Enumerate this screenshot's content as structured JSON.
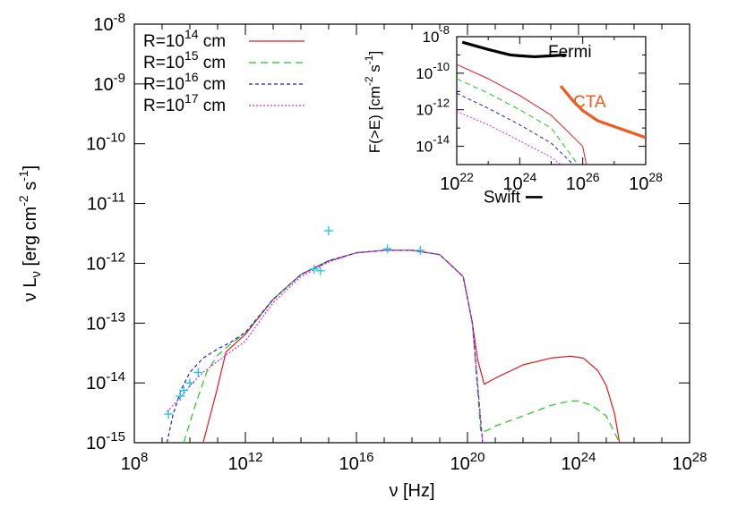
{
  "chart_data": [
    {
      "type": "line",
      "xlabel": "ν [Hz]",
      "ylabel": "ν L_ν [erg cm^-2 s^-1]",
      "xscale": "log",
      "yscale": "log",
      "xlim": [
        100000000.0,
        1e+28
      ],
      "ylim": [
        1e-15,
        1e-08
      ],
      "x_ticks": [
        {
          "value": 100000000.0,
          "base": "10",
          "exp": "8"
        },
        {
          "value": 1000000000000.0,
          "base": "10",
          "exp": "12"
        },
        {
          "value": 1e+16,
          "base": "10",
          "exp": "16"
        },
        {
          "value": 1e+20,
          "base": "10",
          "exp": "20"
        },
        {
          "value": 1e+24,
          "base": "10",
          "exp": "24"
        },
        {
          "value": 1e+28,
          "base": "10",
          "exp": "28"
        }
      ],
      "y_ticks": [
        {
          "value": 1e-15,
          "base": "10",
          "exp": "-15"
        },
        {
          "value": 1e-14,
          "base": "10",
          "exp": "-14"
        },
        {
          "value": 1e-13,
          "base": "10",
          "exp": "-13"
        },
        {
          "value": 1e-12,
          "base": "10",
          "exp": "-12"
        },
        {
          "value": 1e-11,
          "base": "10",
          "exp": "-11"
        },
        {
          "value": 1e-10,
          "base": "10",
          "exp": "-10"
        },
        {
          "value": 1e-09,
          "base": "10",
          "exp": "-9"
        },
        {
          "value": 1e-08,
          "base": "10",
          "exp": "-8"
        }
      ],
      "legend_position": "top-left",
      "series": [
        {
          "name": "R=10^14 cm",
          "name_base": "R=10",
          "name_exp": "14",
          "name_unit": " cm",
          "color": "#e41a1c",
          "dash": "",
          "points": [
            [
              30000000000.0,
              1e-15
            ],
            [
              90000000000.0,
              7e-15
            ],
            [
              200000000000.0,
              3.3e-14
            ],
            [
              1000000000000.0,
              6.5e-14
            ],
            [
              10000000000000.0,
              2.5e-13
            ],
            [
              100000000000000.0,
              6.5e-13
            ],
            [
              1000000000000000.0,
              1.1e-12
            ],
            [
              1e+16,
              1.5e-12
            ],
            [
              1e+17,
              1.65e-12
            ],
            [
              1e+18,
              1.65e-12
            ],
            [
              1e+19,
              1.4e-12
            ],
            [
              7e+19,
              6e-13
            ],
            [
              1.5e+20,
              1e-13
            ],
            [
              2.3e+20,
              2.5e-14
            ],
            [
              4e+20,
              9.5e-15
            ],
            [
              1e+21,
              1.2e-14
            ],
            [
              1e+22,
              2e-14
            ],
            [
              1e+23,
              2.6e-14
            ],
            [
              5e+23,
              2.8e-14
            ],
            [
              1.5e+24,
              2.6e-14
            ],
            [
              5e+24,
              1.6e-14
            ],
            [
              1e+25,
              9e-15
            ],
            [
              2e+25,
              3e-15
            ],
            [
              3e+25,
              1e-15
            ]
          ]
        },
        {
          "name": "R=10^15 cm",
          "name_base": "R=10",
          "name_exp": "15",
          "name_unit": " cm",
          "color": "#1ec81e",
          "dash": "8,5",
          "points": [
            [
              6000000000.0,
              1e-15
            ],
            [
              15000000000.0,
              4e-15
            ],
            [
              40000000000.0,
              1.5e-14
            ],
            [
              100000000000.0,
              2.9e-14
            ],
            [
              300000000000.0,
              4.5e-14
            ],
            [
              1000000000000.0,
              6.8e-14
            ],
            [
              10000000000000.0,
              2.5e-13
            ],
            [
              100000000000000.0,
              6.5e-13
            ],
            [
              1000000000000000.0,
              1.1e-12
            ],
            [
              1e+16,
              1.5e-12
            ],
            [
              1e+17,
              1.65e-12
            ],
            [
              1e+18,
              1.65e-12
            ],
            [
              1e+19,
              1.4e-12
            ],
            [
              7e+19,
              6e-13
            ],
            [
              1.5e+20,
              1e-13
            ],
            [
              3e+20,
              1.5e-15
            ],
            [
              5e+20,
              1.6e-15
            ],
            [
              1e+21,
              1.9e-15
            ],
            [
              1e+22,
              2.8e-15
            ],
            [
              1e+23,
              4.2e-15
            ],
            [
              5e+23,
              5e-15
            ],
            [
              1e+24,
              5e-15
            ],
            [
              3e+24,
              4.2e-15
            ],
            [
              1e+25,
              2.8e-15
            ],
            [
              3e+25,
              1e-15
            ]
          ]
        },
        {
          "name": "R=10^16 cm",
          "name_base": "R=10",
          "name_exp": "16",
          "name_unit": " cm",
          "color": "#1f1fd0",
          "dash": "4,3",
          "points": [
            [
              1500000000.0,
              1e-15
            ],
            [
              2500000000.0,
              3e-15
            ],
            [
              5000000000.0,
              8e-15
            ],
            [
              10000000000.0,
              1.5e-14
            ],
            [
              30000000000.0,
              2.6e-14
            ],
            [
              100000000000.0,
              3.7e-14
            ],
            [
              300000000000.0,
              4.8e-14
            ],
            [
              1000000000000.0,
              7e-14
            ],
            [
              10000000000000.0,
              2.5e-13
            ],
            [
              100000000000000.0,
              6.5e-13
            ],
            [
              1000000000000000.0,
              1.1e-12
            ],
            [
              1e+16,
              1.5e-12
            ],
            [
              1e+17,
              1.65e-12
            ],
            [
              1e+18,
              1.65e-12
            ],
            [
              1e+19,
              1.4e-12
            ],
            [
              7e+19,
              6e-13
            ],
            [
              1.5e+20,
              1e-13
            ],
            [
              3.5e+20,
              1e-15
            ]
          ]
        },
        {
          "name": "R=10^17 cm",
          "name_base": "R=10",
          "name_exp": "17",
          "name_unit": " cm",
          "color": "#e01ee0",
          "dash": "2,2",
          "points": [
            [
              1500000000.0,
              3.3e-15
            ],
            [
              5000000000.0,
              6e-15
            ],
            [
              10000000000.0,
              9e-15
            ],
            [
              30000000000.0,
              1.5e-14
            ],
            [
              100000000000.0,
              2.3e-14
            ],
            [
              1000000000000.0,
              5e-14
            ],
            [
              10000000000000.0,
              2.2e-13
            ],
            [
              100000000000000.0,
              6e-13
            ],
            [
              1000000000000000.0,
              1.05e-12
            ],
            [
              1e+16,
              1.5e-12
            ],
            [
              1e+17,
              1.65e-12
            ],
            [
              1e+18,
              1.65e-12
            ],
            [
              1e+19,
              1.4e-12
            ],
            [
              7e+19,
              6e-13
            ],
            [
              1.5e+20,
              1e-13
            ],
            [
              3.5e+20,
              1e-15
            ]
          ]
        }
      ],
      "observations": {
        "color": "#22ccdd",
        "points": [
          [
            1700000000.0,
            3e-15
          ],
          [
            4500000000.0,
            6e-15
          ],
          [
            6000000000.0,
            7.5e-15
          ],
          [
            10000000000.0,
            1e-14
          ],
          [
            20000000000.0,
            1.5e-14
          ],
          [
            300000000000000.0,
            8e-13
          ],
          [
            500000000000000.0,
            7.5e-13
          ],
          [
            1000000000000000.0,
            3.5e-12
          ],
          [
            1.3e+17,
            1.75e-12
          ],
          [
            2e+18,
            1.65e-12
          ]
        ]
      },
      "annotations": [
        {
          "text": "Swift",
          "at": [
            8e+21,
            1.28e-11
          ],
          "line_to": 5e+22
        }
      ]
    },
    {
      "type": "line",
      "ylabel": "F(>E) [cm^-2 s^-1]",
      "xscale": "log",
      "yscale": "log",
      "xlim": [
        1e+22,
        1e+28
      ],
      "ylim": [
        1e-15,
        1e-08
      ],
      "x_ticks": [
        {
          "value": 1e+22,
          "base": "10",
          "exp": "22"
        },
        {
          "value": 1e+24,
          "base": "10",
          "exp": "24"
        },
        {
          "value": 1e+26,
          "base": "10",
          "exp": "26"
        },
        {
          "value": 1e+28,
          "base": "10",
          "exp": "28"
        }
      ],
      "y_ticks": [
        {
          "value": 1e-14,
          "base": "10",
          "exp": "-14"
        },
        {
          "value": 1e-12,
          "base": "10",
          "exp": "-12"
        },
        {
          "value": 1e-10,
          "base": "10",
          "exp": "-10"
        },
        {
          "value": 1e-08,
          "base": "10",
          "exp": "-8"
        }
      ],
      "series": [
        {
          "name": "Fermi",
          "color": "#000000",
          "dash": "",
          "width": 3.2,
          "points": [
            [
              1.5e+22,
              5e-09
            ],
            [
              1e+23,
              2e-09
            ],
            [
              5e+23,
              1e-09
            ],
            [
              1e+24,
              9e-10
            ],
            [
              3e+24,
              8e-10
            ],
            [
              1e+25,
              9e-10
            ],
            [
              3e+25,
              1e-09
            ]
          ]
        },
        {
          "name": "CTA",
          "color": "#f05a1e",
          "dash": "",
          "width": 3.2,
          "points": [
            [
              2e+25,
              2e-11
            ],
            [
              5e+25,
              3e-12
            ],
            [
              1e+26,
              9e-13
            ],
            [
              3e+26,
              2.5e-13
            ],
            [
              1e+27,
              1.2e-13
            ],
            [
              1e+28,
              3e-14
            ]
          ]
        },
        {
          "name": "",
          "color": "#e41a1c",
          "dash": "",
          "width": 1,
          "points": [
            [
              1e+22,
              3e-10
            ],
            [
              1e+23,
              5e-11
            ],
            [
              1e+24,
              6e-12
            ],
            [
              1e+25,
              5e-13
            ],
            [
              1e+26,
              1e-14
            ],
            [
              1.3e+26,
              1e-15
            ]
          ]
        },
        {
          "name": "",
          "color": "#1ec81e",
          "dash": "6,4",
          "width": 1,
          "points": [
            [
              1e+22,
              5e-11
            ],
            [
              1e+23,
              8e-12
            ],
            [
              1e+24,
              1e-12
            ],
            [
              1e+25,
              1e-13
            ],
            [
              7e+25,
              1e-15
            ]
          ]
        },
        {
          "name": "",
          "color": "#1f1fd0",
          "dash": "4,3",
          "width": 1,
          "points": [
            [
              1e+22,
              8e-12
            ],
            [
              1e+23,
              1.2e-12
            ],
            [
              1e+24,
              1.5e-13
            ],
            [
              1e+25,
              1.5e-14
            ],
            [
              5e+25,
              1e-15
            ]
          ]
        },
        {
          "name": "",
          "color": "#e01ee0",
          "dash": "2,2",
          "width": 1,
          "points": [
            [
              1e+22,
              8e-13
            ],
            [
              1e+23,
              1.5e-13
            ],
            [
              1e+24,
              2e-14
            ],
            [
              1e+25,
              2.5e-15
            ],
            [
              2e+25,
              1e-15
            ]
          ]
        }
      ],
      "labels": [
        {
          "text": "Fermi",
          "color": "#000000"
        },
        {
          "text": "CTA",
          "color": "#f05a1e"
        }
      ]
    }
  ]
}
